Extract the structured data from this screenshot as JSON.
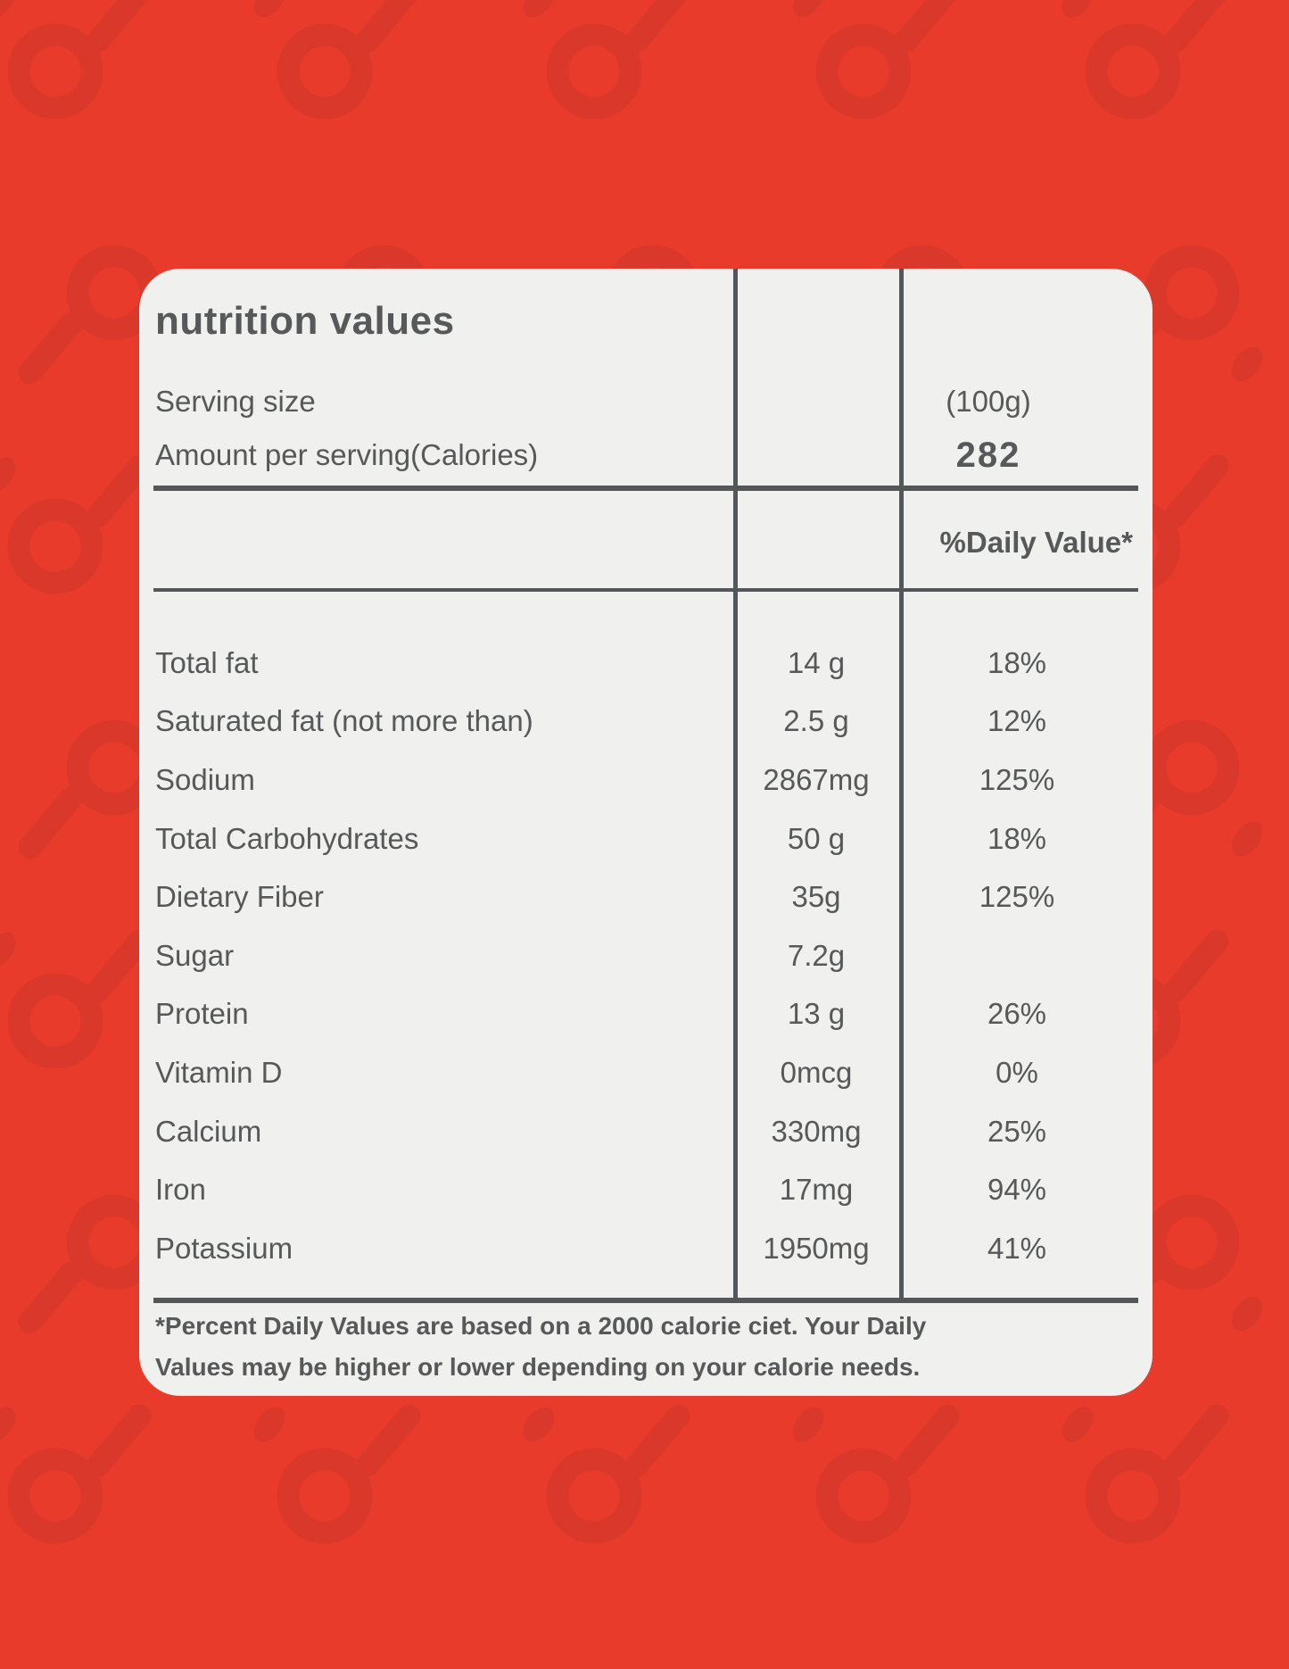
{
  "colors": {
    "background_red": "#E83B2C",
    "pattern_red": "#D9372A",
    "card_background": "#F0F0EE",
    "ink": "#565859"
  },
  "card": {
    "title": "nutrition values",
    "header_rows": [
      {
        "label": "Serving size",
        "value": "(100g)"
      },
      {
        "label": "Amount per serving(Calories)",
        "value": "282"
      }
    ],
    "daily_value_header": "%Daily Value*",
    "table": {
      "rows": [
        {
          "label": "Total fat",
          "amount": "14 g",
          "dv": "18%"
        },
        {
          "label": "Saturated fat (not more than)",
          "amount": "2.5 g",
          "dv": "12%"
        },
        {
          "label": "Sodium",
          "amount": "2867mg",
          "dv": "125%"
        },
        {
          "label": "Total Carbohydrates",
          "amount": "50 g",
          "dv": "18%"
        },
        {
          "label": "Dietary Fiber",
          "amount": "35g",
          "dv": "125%"
        },
        {
          "label": "Sugar",
          "amount": "7.2g",
          "dv": ""
        },
        {
          "label": "Protein",
          "amount": "13 g",
          "dv": "26%"
        },
        {
          "label": "Vitamin D",
          "amount": "0mcg",
          "dv": "0%"
        },
        {
          "label": "Calcium",
          "amount": "330mg",
          "dv": "25%"
        },
        {
          "label": "Iron",
          "amount": "17mg",
          "dv": "94%"
        },
        {
          "label": "Potassium",
          "amount": "1950mg",
          "dv": "41%"
        }
      ]
    },
    "footnote_line1": "*Percent Daily Values are based on a 2000 calorie ciet. Your Daily",
    "footnote_line2": "Values may be higher or lower depending on your calorie needs."
  }
}
